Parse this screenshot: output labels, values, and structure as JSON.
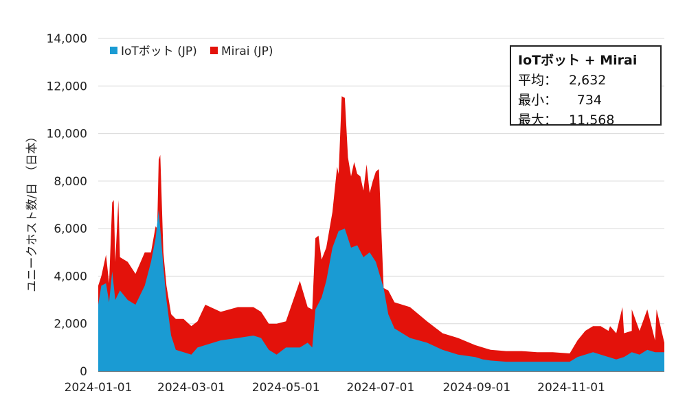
{
  "chart_data": {
    "type": "area",
    "title": "",
    "xlabel": "",
    "ylabel": "ユニークホスト数/日　（日本）",
    "ylim": [
      0,
      14000
    ],
    "y_ticks": [
      "0",
      "2,000",
      "4,000",
      "6,000",
      "8,000",
      "10,000",
      "12,000",
      "14,000"
    ],
    "x_ticks": [
      "2024-01-01",
      "2024-03-01",
      "2024-05-01",
      "2024-07-01",
      "2024-09-01",
      "2024-11-01"
    ],
    "legend": [
      {
        "name": "IoTボット (JP)",
        "color": "#1a9bd3"
      },
      {
        "name": "Mirai (JP)",
        "color": "#e3120b"
      }
    ],
    "stacked": true,
    "series": [
      {
        "name": "IoTボット (JP)",
        "color": "#1a9bd3",
        "points": [
          [
            "2024-01-01",
            2800
          ],
          [
            "2024-01-03",
            3600
          ],
          [
            "2024-01-06",
            3700
          ],
          [
            "2024-01-08",
            2900
          ],
          [
            "2024-01-10",
            4200
          ],
          [
            "2024-01-12",
            3000
          ],
          [
            "2024-01-15",
            3400
          ],
          [
            "2024-01-20",
            3000
          ],
          [
            "2024-01-25",
            2800
          ],
          [
            "2024-01-31",
            3600
          ],
          [
            "2024-02-04",
            4600
          ],
          [
            "2024-02-07",
            5600
          ],
          [
            "2024-02-09",
            6800
          ],
          [
            "2024-02-12",
            4400
          ],
          [
            "2024-02-14",
            3000
          ],
          [
            "2024-02-17",
            1500
          ],
          [
            "2024-02-20",
            900
          ],
          [
            "2024-02-25",
            800
          ],
          [
            "2024-03-01",
            700
          ],
          [
            "2024-03-05",
            1000
          ],
          [
            "2024-03-10",
            1100
          ],
          [
            "2024-03-20",
            1300
          ],
          [
            "2024-03-31",
            1400
          ],
          [
            "2024-04-10",
            1500
          ],
          [
            "2024-04-15",
            1400
          ],
          [
            "2024-04-20",
            900
          ],
          [
            "2024-04-25",
            700
          ],
          [
            "2024-05-01",
            1000
          ],
          [
            "2024-05-10",
            1000
          ],
          [
            "2024-05-15",
            1200
          ],
          [
            "2024-05-18",
            1000
          ],
          [
            "2024-05-20",
            2600
          ],
          [
            "2024-05-24",
            3100
          ],
          [
            "2024-05-27",
            3800
          ],
          [
            "2024-05-31",
            5200
          ],
          [
            "2024-06-04",
            5900
          ],
          [
            "2024-06-08",
            6000
          ],
          [
            "2024-06-12",
            5200
          ],
          [
            "2024-06-16",
            5300
          ],
          [
            "2024-06-20",
            4800
          ],
          [
            "2024-06-24",
            5000
          ],
          [
            "2024-06-28",
            4600
          ],
          [
            "2024-07-03",
            3500
          ],
          [
            "2024-07-06",
            2400
          ],
          [
            "2024-07-10",
            1800
          ],
          [
            "2024-07-20",
            1400
          ],
          [
            "2024-07-31",
            1200
          ],
          [
            "2024-08-10",
            900
          ],
          [
            "2024-08-20",
            700
          ],
          [
            "2024-08-31",
            600
          ],
          [
            "2024-09-05",
            500
          ],
          [
            "2024-09-10",
            450
          ],
          [
            "2024-09-20",
            400
          ],
          [
            "2024-09-30",
            400
          ],
          [
            "2024-10-10",
            400
          ],
          [
            "2024-10-20",
            400
          ],
          [
            "2024-10-31",
            400
          ],
          [
            "2024-11-05",
            600
          ],
          [
            "2024-11-10",
            700
          ],
          [
            "2024-11-15",
            800
          ],
          [
            "2024-11-20",
            700
          ],
          [
            "2024-11-25",
            600
          ],
          [
            "2024-11-30",
            500
          ],
          [
            "2024-12-05",
            600
          ],
          [
            "2024-12-10",
            800
          ],
          [
            "2024-12-15",
            700
          ],
          [
            "2024-12-20",
            900
          ],
          [
            "2024-12-25",
            800
          ],
          [
            "2024-12-31",
            800
          ]
        ]
      },
      {
        "name": "Mirai (JP)",
        "color": "#e3120b",
        "points": [
          [
            "2024-01-01",
            800
          ],
          [
            "2024-01-03",
            400
          ],
          [
            "2024-01-06",
            1200
          ],
          [
            "2024-01-08",
            800
          ],
          [
            "2024-01-10",
            2900
          ],
          [
            "2024-01-12",
            1600
          ],
          [
            "2024-01-15",
            1400
          ],
          [
            "2024-01-20",
            1600
          ],
          [
            "2024-01-25",
            1300
          ],
          [
            "2024-01-31",
            1400
          ],
          [
            "2024-02-04",
            400
          ],
          [
            "2024-02-07",
            500
          ],
          [
            "2024-02-09",
            2100
          ],
          [
            "2024-02-12",
            600
          ],
          [
            "2024-02-14",
            600
          ],
          [
            "2024-02-17",
            900
          ],
          [
            "2024-02-20",
            1300
          ],
          [
            "2024-02-25",
            1400
          ],
          [
            "2024-03-01",
            1200
          ],
          [
            "2024-03-05",
            1100
          ],
          [
            "2024-03-10",
            1700
          ],
          [
            "2024-03-20",
            1200
          ],
          [
            "2024-03-31",
            1300
          ],
          [
            "2024-04-10",
            1200
          ],
          [
            "2024-04-15",
            1100
          ],
          [
            "2024-04-20",
            1100
          ],
          [
            "2024-04-25",
            1300
          ],
          [
            "2024-05-01",
            1100
          ],
          [
            "2024-05-10",
            2800
          ],
          [
            "2024-05-15",
            1500
          ],
          [
            "2024-05-18",
            1600
          ],
          [
            "2024-05-20",
            3000
          ],
          [
            "2024-05-24",
            1600
          ],
          [
            "2024-05-27",
            1400
          ],
          [
            "2024-05-31",
            1500
          ],
          [
            "2024-06-04",
            2400
          ],
          [
            "2024-06-08",
            5500
          ],
          [
            "2024-06-12",
            3000
          ],
          [
            "2024-06-16",
            3000
          ],
          [
            "2024-06-20",
            2800
          ],
          [
            "2024-06-24",
            2500
          ],
          [
            "2024-06-28",
            3800
          ],
          [
            "2024-07-03",
            0
          ],
          [
            "2024-07-06",
            1000
          ],
          [
            "2024-07-10",
            1100
          ],
          [
            "2024-07-20",
            1300
          ],
          [
            "2024-07-31",
            900
          ],
          [
            "2024-08-10",
            700
          ],
          [
            "2024-08-20",
            700
          ],
          [
            "2024-08-31",
            500
          ],
          [
            "2024-09-05",
            500
          ],
          [
            "2024-09-10",
            450
          ],
          [
            "2024-09-20",
            450
          ],
          [
            "2024-09-30",
            450
          ],
          [
            "2024-10-10",
            400
          ],
          [
            "2024-10-20",
            400
          ],
          [
            "2024-10-31",
            350
          ],
          [
            "2024-11-05",
            700
          ],
          [
            "2024-11-10",
            1000
          ],
          [
            "2024-11-15",
            1100
          ],
          [
            "2024-11-20",
            1200
          ],
          [
            "2024-11-25",
            1100
          ],
          [
            "2024-11-30",
            1100
          ],
          [
            "2024-12-05",
            1000
          ],
          [
            "2024-12-10",
            900
          ],
          [
            "2024-12-15",
            1000
          ],
          [
            "2024-12-20",
            1700
          ],
          [
            "2024-12-25",
            500
          ],
          [
            "2024-12-31",
            400
          ]
        ]
      }
    ],
    "spikes_total": [
      [
        "2024-01-11",
        7200
      ],
      [
        "2024-01-14",
        7200
      ],
      [
        "2024-02-08",
        6000
      ],
      [
        "2024-02-10",
        9100
      ],
      [
        "2024-05-22",
        5700
      ],
      [
        "2024-06-03",
        8600
      ],
      [
        "2024-06-06",
        11568
      ],
      [
        "2024-06-10",
        9000
      ],
      [
        "2024-06-14",
        8800
      ],
      [
        "2024-06-18",
        8200
      ],
      [
        "2024-06-22",
        8700
      ],
      [
        "2024-06-26",
        8000
      ],
      [
        "2024-06-30",
        8500
      ],
      [
        "2024-11-19",
        1900
      ],
      [
        "2024-11-26",
        1900
      ],
      [
        "2024-12-04",
        2700
      ],
      [
        "2024-12-10",
        2600
      ],
      [
        "2024-12-26",
        2600
      ]
    ]
  },
  "stats": {
    "title": "IoTボット + Mirai",
    "avg_label": "平均：",
    "avg_value": "2,632",
    "min_label": "最小：",
    "min_value": "734",
    "max_label": "最大：",
    "max_value": "11,568"
  }
}
